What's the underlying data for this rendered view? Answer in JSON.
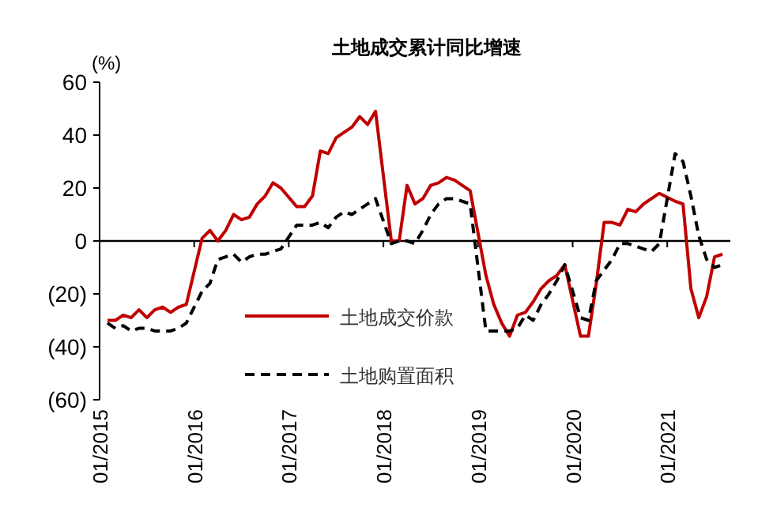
{
  "chart_data": {
    "type": "line",
    "title": "土地成交累计同比增速",
    "ylabel": "(%)",
    "x": [
      "2015-02",
      "2015-03",
      "2015-04",
      "2015-05",
      "2015-06",
      "2015-07",
      "2015-08",
      "2015-09",
      "2015-10",
      "2015-11",
      "2015-12",
      "2016-02",
      "2016-03",
      "2016-04",
      "2016-05",
      "2016-06",
      "2016-07",
      "2016-08",
      "2016-09",
      "2016-10",
      "2016-11",
      "2016-12",
      "2017-02",
      "2017-03",
      "2017-04",
      "2017-05",
      "2017-06",
      "2017-07",
      "2017-08",
      "2017-09",
      "2017-10",
      "2017-11",
      "2017-12",
      "2018-02",
      "2018-03",
      "2018-04",
      "2018-05",
      "2018-06",
      "2018-07",
      "2018-08",
      "2018-09",
      "2018-10",
      "2018-11",
      "2018-12",
      "2019-02",
      "2019-03",
      "2019-04",
      "2019-05",
      "2019-06",
      "2019-07",
      "2019-08",
      "2019-09",
      "2019-10",
      "2019-11",
      "2019-12",
      "2020-02",
      "2020-03",
      "2020-04",
      "2020-05",
      "2020-06",
      "2020-07",
      "2020-08",
      "2020-09",
      "2020-10",
      "2020-11",
      "2020-12",
      "2021-02",
      "2021-03",
      "2021-04",
      "2021-05",
      "2021-06",
      "2021-07",
      "2021-08"
    ],
    "series": [
      {
        "name": "土地成交价款",
        "color": "#c00000",
        "line_style": "solid",
        "values": [
          -30,
          -30,
          -28,
          -29,
          -26,
          -29,
          -26,
          -25,
          -27,
          -25,
          -24,
          1,
          4,
          0,
          4,
          10,
          8,
          9,
          14,
          17,
          22,
          20,
          13,
          13,
          17,
          34,
          33,
          39,
          41,
          43,
          47,
          44,
          49,
          0,
          0,
          21,
          14,
          16,
          21,
          22,
          24,
          23,
          21,
          19,
          -13,
          -24,
          -31,
          -36,
          -28,
          -27,
          -23,
          -18,
          -15,
          -13,
          -9,
          -36,
          -36,
          -16,
          7,
          7,
          6,
          12,
          11,
          14,
          16,
          18,
          15,
          14,
          -18,
          -29,
          -21,
          -6,
          -5
        ]
      },
      {
        "name": "土地购置面积",
        "color": "#000000",
        "line_style": "dashed",
        "values": [
          -31,
          -33,
          -32,
          -34,
          -33,
          -33,
          -34,
          -34,
          -34,
          -33,
          -31,
          -19,
          -16,
          -7,
          -6,
          -5,
          -8,
          -6,
          -5,
          -5,
          -4,
          -3,
          6,
          6,
          6,
          7,
          5,
          9,
          11,
          10,
          12,
          14,
          16,
          -1,
          0,
          0,
          -1,
          4,
          10,
          14,
          16,
          16,
          15,
          14,
          -34,
          -34,
          -34,
          -34,
          -33,
          -28,
          -30,
          -24,
          -20,
          -15,
          -9,
          -29,
          -30,
          -15,
          -11,
          -7,
          -1,
          -1,
          -2,
          -3,
          -4,
          -1,
          33,
          30,
          17,
          2,
          -7,
          -10,
          -9
        ]
      }
    ],
    "xlim": [
      "2015-01",
      "2021-09"
    ],
    "xticks": [
      {
        "value": "2015-01",
        "label": "01/2015"
      },
      {
        "value": "2016-01",
        "label": "01/2016"
      },
      {
        "value": "2017-01",
        "label": "01/2017"
      },
      {
        "value": "2018-01",
        "label": "01/2018"
      },
      {
        "value": "2019-01",
        "label": "01/2019"
      },
      {
        "value": "2020-01",
        "label": "01/2020"
      },
      {
        "value": "2021-01",
        "label": "01/2021"
      }
    ],
    "ylim": [
      -60,
      60
    ],
    "yticks": [
      {
        "value": -60,
        "label": "(60)"
      },
      {
        "value": -40,
        "label": "(40)"
      },
      {
        "value": -20,
        "label": "(20)"
      },
      0,
      20,
      40,
      60
    ],
    "legend": "bottom",
    "marker": "none"
  }
}
